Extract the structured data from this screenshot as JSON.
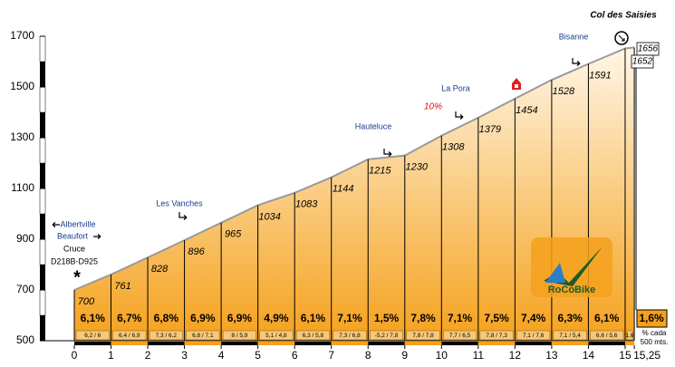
{
  "chart_data": {
    "type": "area",
    "title": "Col des Saisies",
    "x": [
      0,
      1,
      2,
      3,
      4,
      5,
      6,
      7,
      8,
      9,
      10,
      11,
      12,
      13,
      14,
      15,
      15.25
    ],
    "values": [
      700,
      761,
      828,
      896,
      965,
      1034,
      1083,
      1144,
      1215,
      1230,
      1308,
      1379,
      1454,
      1528,
      1591,
      1652,
      1656
    ],
    "xlim": [
      0,
      15.25
    ],
    "ylim": [
      500,
      1700
    ],
    "xticks": [
      0,
      1,
      2,
      3,
      4,
      5,
      6,
      7,
      8,
      9,
      10,
      11,
      12,
      13,
      14,
      15,
      {
        "value": 15.25,
        "label": "15,25"
      }
    ],
    "yticks": [
      500,
      700,
      900,
      1100,
      1300,
      1500,
      1700
    ],
    "gradient_labels": [
      "6,1%",
      "6,7%",
      "6,8%",
      "6,9%",
      "6,9%",
      "4,9%",
      "6,1%",
      "7,1%",
      "1,5%",
      "7,8%",
      "7,1%",
      "7,5%",
      "7,4%",
      "6,3%",
      "6,1%",
      "1,6%"
    ],
    "half_km_labels": [
      "6,2 / 6",
      "6,4 / 6,9",
      "7,3 / 6,2",
      "6,8 / 7,1",
      "8 / 5,9",
      "5,1 / 4,8",
      "6,3 / 5,8",
      "7,3 / 6,8",
      "-5,2 / 7,8",
      "7,8 / 7,8",
      "7,7 / 6,5",
      "7,8 / 7,3",
      "7,1 / 7,6",
      "7,1 / 5,4",
      "6,6 / 5,6",
      "1,6"
    ],
    "note_lines": [
      "% cada",
      "500 mts."
    ],
    "places": [
      "Albertville",
      "Beaufort",
      "Cruce",
      "D218B-D925",
      "Les Vanches",
      "Hauteluce",
      "La Pora",
      "Bisanne"
    ],
    "start_marker": "*",
    "max_gradient": "10%",
    "logo": "RoCoBike",
    "fill_color": "#f5a11c",
    "line_color": "#9a9a9a"
  }
}
